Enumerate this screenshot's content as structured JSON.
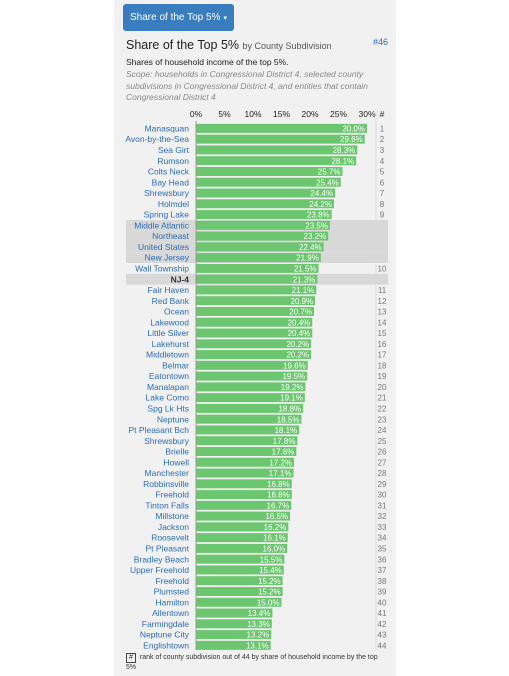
{
  "button": {
    "label": "Share of the Top 5%",
    "caret": "▾"
  },
  "header": {
    "title": "Share of the Top 5%",
    "by": "by County Subdivision",
    "rank_link": "#46",
    "subtitle": "Shares of household income of the top 5%.",
    "scope": "Scope: households in Congressional District 4, selected county subdivisions in Congressional District 4, and entities that contain Congressional District 4"
  },
  "footnote": {
    "symbol": "#",
    "text": "rank of county subdivision out of 44 by share of household income by the top 5%"
  },
  "colors": {
    "bar": "#6cc66f",
    "shade": "#d8d8d8",
    "label": "#2a6db5",
    "value": "#ffffff",
    "rank": "#777777"
  },
  "chart_data": {
    "type": "bar",
    "orientation": "horizontal",
    "xlim": [
      0,
      32
    ],
    "x_ticks": [
      "0%",
      "5%",
      "10%",
      "15%",
      "20%",
      "25%",
      "30%"
    ],
    "rank_header": "#",
    "rows": [
      {
        "name": "Manasquan",
        "value": 30.0,
        "label": "30.0%",
        "rank": "1"
      },
      {
        "name": "Avon-by-the-Sea",
        "value": 29.6,
        "label": "29.6%",
        "rank": "2"
      },
      {
        "name": "Sea Girt",
        "value": 28.3,
        "label": "28.3%",
        "rank": "3"
      },
      {
        "name": "Rumson",
        "value": 28.1,
        "label": "28.1%",
        "rank": "4"
      },
      {
        "name": "Colts Neck",
        "value": 25.7,
        "label": "25.7%",
        "rank": "5"
      },
      {
        "name": "Bay Head",
        "value": 25.4,
        "label": "25.4%",
        "rank": "6"
      },
      {
        "name": "Shrewsbury",
        "value": 24.4,
        "label": "24.4%",
        "rank": "7"
      },
      {
        "name": "Holmdel",
        "value": 24.2,
        "label": "24.2%",
        "rank": "8"
      },
      {
        "name": "Spring Lake",
        "value": 23.8,
        "label": "23.8%",
        "rank": "9"
      },
      {
        "name": "Middle Atlantic",
        "value": 23.5,
        "label": "23.5%",
        "rank": "",
        "shaded": true
      },
      {
        "name": "Northeast",
        "value": 23.2,
        "label": "23.2%",
        "rank": "",
        "shaded": true
      },
      {
        "name": "United States",
        "value": 22.4,
        "label": "22.4%",
        "rank": "",
        "shaded": true
      },
      {
        "name": "New Jersey",
        "value": 21.9,
        "label": "21.9%",
        "rank": "",
        "shaded": true
      },
      {
        "name": "Wall Township",
        "value": 21.5,
        "label": "21.5%",
        "rank": "10"
      },
      {
        "name": "NJ-4",
        "value": 21.3,
        "label": "21.3%",
        "rank": "",
        "shaded": true,
        "bold": true
      },
      {
        "name": "Fair Haven",
        "value": 21.1,
        "label": "21.1%",
        "rank": "11"
      },
      {
        "name": "Red Bank",
        "value": 20.9,
        "label": "20.9%",
        "rank": "12"
      },
      {
        "name": "Ocean",
        "value": 20.7,
        "label": "20.7%",
        "rank": "13"
      },
      {
        "name": "Lakewood",
        "value": 20.4,
        "label": "20.4%",
        "rank": "14"
      },
      {
        "name": "Little Silver",
        "value": 20.4,
        "label": "20.4%",
        "rank": "15"
      },
      {
        "name": "Lakehurst",
        "value": 20.2,
        "label": "20.2%",
        "rank": "16"
      },
      {
        "name": "Middletown",
        "value": 20.2,
        "label": "20.2%",
        "rank": "17"
      },
      {
        "name": "Belmar",
        "value": 19.6,
        "label": "19.6%",
        "rank": "18"
      },
      {
        "name": "Eatontown",
        "value": 19.5,
        "label": "19.5%",
        "rank": "19"
      },
      {
        "name": "Manalapan",
        "value": 19.2,
        "label": "19.2%",
        "rank": "20"
      },
      {
        "name": "Lake Como",
        "value": 19.1,
        "label": "19.1%",
        "rank": "21"
      },
      {
        "name": "Spg Lk Hts",
        "value": 18.8,
        "label": "18.8%",
        "rank": "22"
      },
      {
        "name": "Neptune",
        "value": 18.5,
        "label": "18.5%",
        "rank": "23"
      },
      {
        "name": "Pt Pleasant Bch",
        "value": 18.1,
        "label": "18.1%",
        "rank": "24"
      },
      {
        "name": "Shrewsbury",
        "value": 17.8,
        "label": "17.8%",
        "rank": "25"
      },
      {
        "name": "Brielle",
        "value": 17.6,
        "label": "17.6%",
        "rank": "26"
      },
      {
        "name": "Howell",
        "value": 17.2,
        "label": "17.2%",
        "rank": "27"
      },
      {
        "name": "Manchester",
        "value": 17.1,
        "label": "17.1%",
        "rank": "28"
      },
      {
        "name": "Robbinsville",
        "value": 16.8,
        "label": "16.8%",
        "rank": "29"
      },
      {
        "name": "Freehold",
        "value": 16.8,
        "label": "16.8%",
        "rank": "30"
      },
      {
        "name": "Tinton Falls",
        "value": 16.7,
        "label": "16.7%",
        "rank": "31"
      },
      {
        "name": "Millstone",
        "value": 16.5,
        "label": "16.5%",
        "rank": "32"
      },
      {
        "name": "Jackson",
        "value": 16.2,
        "label": "16.2%",
        "rank": "33"
      },
      {
        "name": "Roosevelt",
        "value": 16.1,
        "label": "16.1%",
        "rank": "34"
      },
      {
        "name": "Pt Pleasant",
        "value": 16.0,
        "label": "16.0%",
        "rank": "35"
      },
      {
        "name": "Bradley Beach",
        "value": 15.5,
        "label": "15.5%",
        "rank": "36"
      },
      {
        "name": "Upper Freehold",
        "value": 15.4,
        "label": "15.4%",
        "rank": "37"
      },
      {
        "name": "Freehold",
        "value": 15.2,
        "label": "15.2%",
        "rank": "38"
      },
      {
        "name": "Plumsted",
        "value": 15.2,
        "label": "15.2%",
        "rank": "39"
      },
      {
        "name": "Hamilton",
        "value": 15.0,
        "label": "15.0%",
        "rank": "40"
      },
      {
        "name": "Allentown",
        "value": 13.4,
        "label": "13.4%",
        "rank": "41"
      },
      {
        "name": "Farmingdale",
        "value": 13.3,
        "label": "13.3%",
        "rank": "42"
      },
      {
        "name": "Neptune City",
        "value": 13.2,
        "label": "13.2%",
        "rank": "43"
      },
      {
        "name": "Englishtown",
        "value": 13.1,
        "label": "13.1%",
        "rank": "44"
      }
    ]
  }
}
